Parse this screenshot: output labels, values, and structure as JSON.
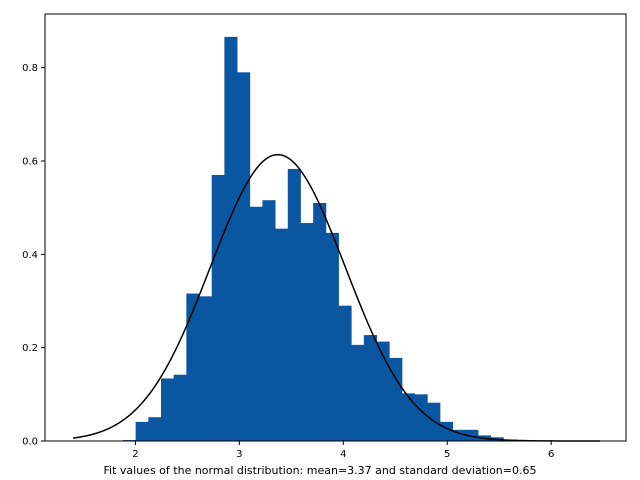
{
  "chart_data": {
    "type": "bar",
    "title": "",
    "xlabel": "",
    "ylabel": "",
    "xlim": [
      1.13,
      6.72
    ],
    "ylim": [
      0,
      0.915
    ],
    "grid": false,
    "bin_width": 0.122,
    "bar_color": "#0a56a0",
    "line_color": "#000000",
    "histogram": {
      "bin_starts": [
        1.88,
        2.002,
        2.124,
        2.246,
        2.368,
        2.49,
        2.612,
        2.734,
        2.856,
        2.978,
        3.1,
        3.222,
        3.344,
        3.466,
        3.588,
        3.71,
        3.832,
        3.954,
        4.076,
        4.198,
        4.32,
        4.442,
        4.564,
        4.686,
        4.808,
        4.93,
        5.052,
        5.174,
        5.296,
        5.418,
        5.54,
        5.662,
        5.784,
        5.906
      ],
      "values": [
        0.002,
        0.041,
        0.051,
        0.134,
        0.142,
        0.316,
        0.31,
        0.57,
        0.866,
        0.79,
        0.502,
        0.516,
        0.455,
        0.583,
        0.467,
        0.51,
        0.446,
        0.29,
        0.206,
        0.227,
        0.213,
        0.178,
        0.102,
        0.1,
        0.082,
        0.041,
        0.024,
        0.024,
        0.012,
        0.008,
        0.003,
        0.002,
        0.001,
        0.001
      ]
    },
    "fit_line": {
      "type": "line",
      "distribution": "normal",
      "mean": 3.37,
      "std": 0.65,
      "x_range": [
        1.4,
        6.47
      ]
    },
    "x_ticks": [
      2,
      3,
      4,
      5,
      6
    ],
    "y_ticks": [
      0.0,
      0.2,
      0.4,
      0.6,
      0.8
    ]
  },
  "caption": "Fit values of the normal distribution: mean=3.37 and standard deviation=0.65"
}
